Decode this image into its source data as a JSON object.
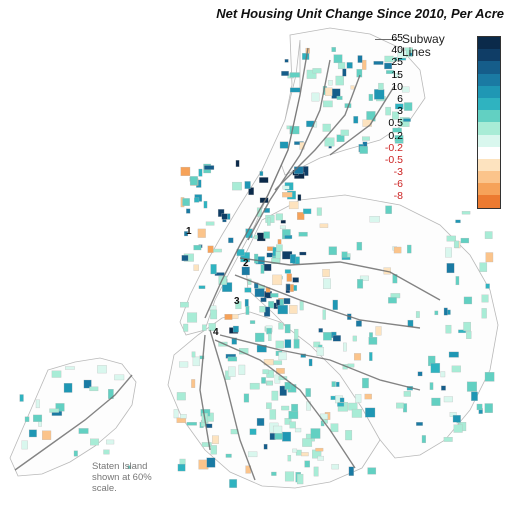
{
  "title": "Net Housing Unit Change Since 2010, Per Acre",
  "subway_key": {
    "label_line1": "Subway",
    "label_line2": "Lines"
  },
  "legend": {
    "labels": [
      {
        "text": "65",
        "negative": false
      },
      {
        "text": "40",
        "negative": false
      },
      {
        "text": "25",
        "negative": false
      },
      {
        "text": "15",
        "negative": false
      },
      {
        "text": "10",
        "negative": false
      },
      {
        "text": "6",
        "negative": false
      },
      {
        "text": "3",
        "negative": false
      },
      {
        "text": "0.5",
        "negative": false
      },
      {
        "text": "0.2",
        "negative": false
      },
      {
        "text": "-0.2",
        "negative": true
      },
      {
        "text": "-0.5",
        "negative": true
      },
      {
        "text": "-3",
        "negative": true
      },
      {
        "text": "-6",
        "negative": true
      },
      {
        "text": "-8",
        "negative": true
      }
    ],
    "colors": [
      "#0b2a4a",
      "#0f3d66",
      "#155d8a",
      "#1a7aa3",
      "#1f97b4",
      "#2fb3c0",
      "#62d0c2",
      "#a8ecd6",
      "#d9f7ee",
      "#ffffff",
      "#fde3bf",
      "#fbc48b",
      "#f6a259",
      "#ec7a30"
    ],
    "negative_label_color": "#cc2222"
  },
  "map": {
    "markers": [
      "1",
      "2",
      "3",
      "4"
    ],
    "boundary_color": "#b9b9b9",
    "subway_color": "#6e6e6e"
  },
  "staten_island_note": "Staten Island shown at 60% scale."
}
